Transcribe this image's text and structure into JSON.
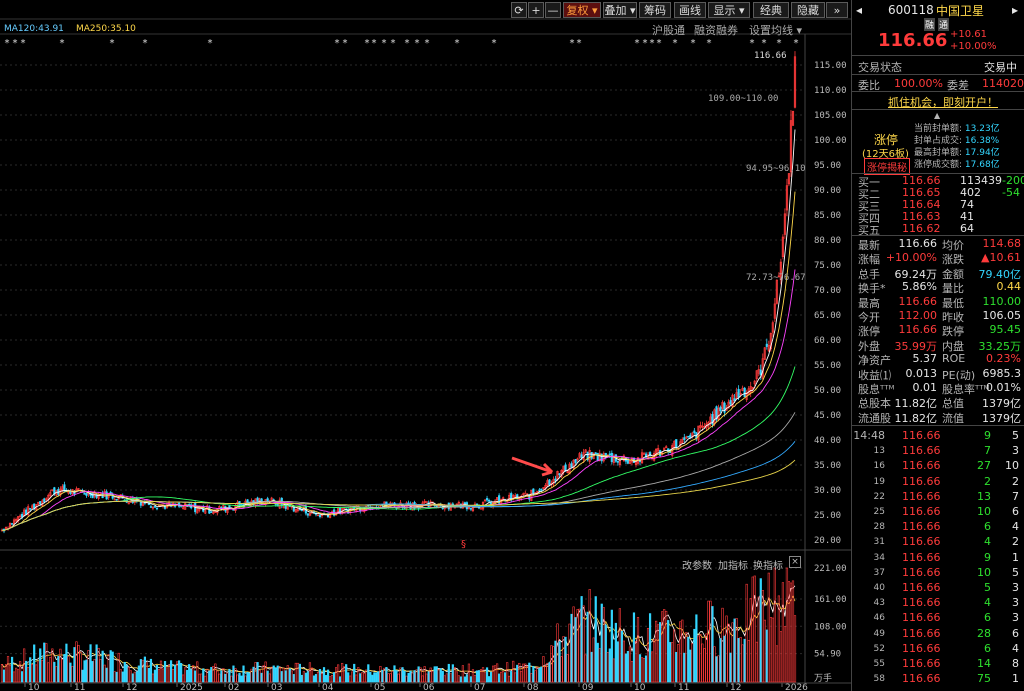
{
  "toolbar": {
    "buttons": [
      "+",
      "—",
      "复权 ▾",
      "叠加 ▾",
      "筹码",
      "画线",
      "显示 ▾",
      "经典",
      "隐藏"
    ],
    "sub_links": [
      "沪股通",
      "融资融券",
      "设置均线 ▾"
    ]
  },
  "ma_labels": {
    "ma120": "MA120:43.91",
    "ma250": "MA250:35.10"
  },
  "price_axis": [
    "115.00",
    "110.00",
    "105.00",
    "100.00",
    "95.00",
    "90.00",
    "85.00",
    "80.00",
    "75.00",
    "70.00",
    "65.00",
    "60.00",
    "55.00",
    "50.00",
    "45.00",
    "40.00",
    "35.00",
    "30.00",
    "25.00",
    "20.00"
  ],
  "volume_axis": [
    "221.00",
    "161.00",
    "108.00",
    "54.90",
    "万手"
  ],
  "months": [
    "10",
    "11",
    "12",
    "2025",
    "02",
    "03",
    "04",
    "05",
    "06",
    "07",
    "08",
    "09",
    "10",
    "11",
    "12",
    "2026"
  ],
  "chart_annotations": {
    "high": "116.66",
    "band1": "109.00~110.00",
    "band2": "94.95~96.10",
    "band3": "72.73~76.67",
    "event_marker": "§"
  },
  "volume_toolbar": [
    "改参数",
    "加指标",
    "换指标"
  ],
  "colors": {
    "up": "#ff3b3b",
    "down": "#33d6ff",
    "bg": "#000000",
    "accent": "#ffd84a"
  },
  "quote": {
    "code": "600118",
    "name": "中国卫星",
    "tags": [
      "融",
      "通"
    ],
    "price": "116.66",
    "change": "+10.61",
    "change_pct": "+10.00%",
    "status_label": "交易状态",
    "status_value": "交易中",
    "weibi_label": "委比",
    "weibi_value": "100.00%",
    "weicha_label": "委差",
    "weicha_value": "114020",
    "banner": "抓住机会，即刻开户！",
    "limit_up": {
      "title": "涨停",
      "days": "(12天6板)",
      "secret": "涨停揭秘",
      "items": [
        {
          "label": "当前封单额:",
          "value": "13.23亿"
        },
        {
          "label": "封单占成交:",
          "value": "16.38%"
        },
        {
          "label": "最高封单额:",
          "value": "17.94亿"
        },
        {
          "label": "涨停成交额:",
          "value": "17.68亿"
        }
      ]
    },
    "order_book": [
      {
        "label": "买一",
        "price": "116.66",
        "vol": "113439",
        "chg": "-200"
      },
      {
        "label": "买二",
        "price": "116.65",
        "vol": "402",
        "chg": "-54"
      },
      {
        "label": "买三",
        "price": "116.64",
        "vol": "74",
        "chg": ""
      },
      {
        "label": "买四",
        "price": "116.63",
        "vol": "41",
        "chg": ""
      },
      {
        "label": "买五",
        "price": "116.62",
        "vol": "64",
        "chg": ""
      }
    ],
    "stats": [
      {
        "l1": "最新",
        "v1": "116.66",
        "l2": "均价",
        "v2": "114.68"
      },
      {
        "l1": "涨幅",
        "v1": "+10.00%",
        "l2": "涨跌",
        "v2": "▲10.61"
      },
      {
        "l1": "总手",
        "v1": "69.24万",
        "l2": "金额",
        "v2": "79.40亿"
      },
      {
        "l1": "换手*",
        "v1": "5.86%",
        "l2": "量比",
        "v2": "0.44"
      },
      {
        "l1": "最高",
        "v1": "116.66",
        "l2": "最低",
        "v2": "110.00"
      },
      {
        "l1": "今开",
        "v1": "112.00",
        "l2": "昨收",
        "v2": "106.05"
      },
      {
        "l1": "涨停",
        "v1": "116.66",
        "l2": "跌停",
        "v2": "95.45"
      },
      {
        "l1": "外盘",
        "v1": "35.99万",
        "l2": "内盘",
        "v2": "33.25万"
      },
      {
        "l1": "净资产",
        "v1": "5.37",
        "l2": "ROE",
        "v2": "0.23%"
      },
      {
        "l1": "收益⑴",
        "v1": "0.013",
        "l2": "PE(动)",
        "v2": "6985.3"
      },
      {
        "l1": "股息ᵀᵀᴹ",
        "v1": "0.01",
        "l2": "股息率ᵀᵀᴹ",
        "v2": "0.01%"
      },
      {
        "l1": "总股本",
        "v1": "11.82亿",
        "l2": "总值",
        "v2": "1379亿"
      },
      {
        "l1": "流通股",
        "v1": "11.82亿",
        "l2": "流值",
        "v2": "1379亿"
      }
    ],
    "ticks": [
      {
        "t": "14:48",
        "p": "116.66",
        "v": "9",
        "n": "5"
      },
      {
        "t": "13",
        "p": "116.66",
        "v": "7",
        "n": "3"
      },
      {
        "t": "16",
        "p": "116.66",
        "v": "27",
        "n": "10"
      },
      {
        "t": "19",
        "p": "116.66",
        "v": "2",
        "n": "2"
      },
      {
        "t": "22",
        "p": "116.66",
        "v": "13",
        "n": "7"
      },
      {
        "t": "25",
        "p": "116.66",
        "v": "10",
        "n": "6"
      },
      {
        "t": "28",
        "p": "116.66",
        "v": "6",
        "n": "4"
      },
      {
        "t": "31",
        "p": "116.66",
        "v": "4",
        "n": "2"
      },
      {
        "t": "34",
        "p": "116.66",
        "v": "9",
        "n": "1"
      },
      {
        "t": "37",
        "p": "116.66",
        "v": "10",
        "n": "5"
      },
      {
        "t": "40",
        "p": "116.66",
        "v": "5",
        "n": "3"
      },
      {
        "t": "43",
        "p": "116.66",
        "v": "4",
        "n": "3"
      },
      {
        "t": "46",
        "p": "116.66",
        "v": "6",
        "n": "3"
      },
      {
        "t": "49",
        "p": "116.66",
        "v": "28",
        "n": "6"
      },
      {
        "t": "52",
        "p": "116.66",
        "v": "6",
        "n": "4"
      },
      {
        "t": "55",
        "p": "116.66",
        "v": "14",
        "n": "8"
      },
      {
        "t": "58",
        "p": "116.66",
        "v": "75",
        "n": "1"
      }
    ]
  },
  "chart_data": {
    "type": "candlestick",
    "months": [
      "10",
      "11",
      "12",
      "2025",
      "02",
      "03",
      "04",
      "05",
      "06",
      "07",
      "08",
      "09",
      "10",
      "11",
      "12",
      "2026"
    ],
    "close_by_month": [
      22,
      30,
      29,
      27,
      26,
      28,
      25,
      27,
      27,
      27,
      29,
      37,
      36,
      40,
      50,
      116.66
    ],
    "volume_by_month": [
      40,
      70,
      55,
      35,
      30,
      32,
      30,
      28,
      28,
      28,
      35,
      150,
      110,
      120,
      150,
      221
    ],
    "ma120": 43.91,
    "ma250": 35.1,
    "ylim": [
      20,
      117
    ],
    "vol_ylim": [
      0,
      221
    ]
  }
}
